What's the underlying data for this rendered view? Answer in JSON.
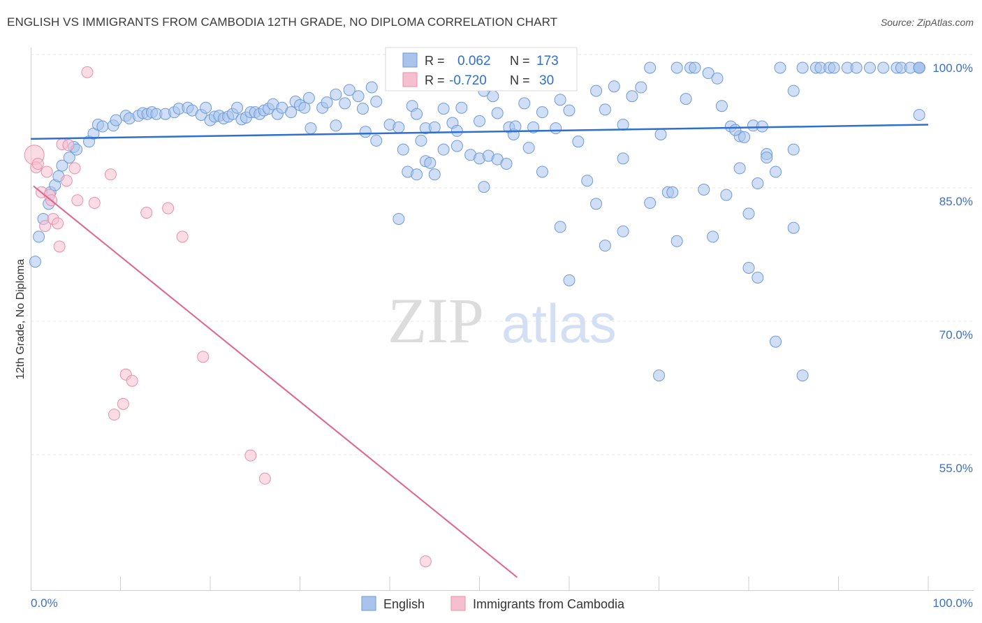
{
  "header": {
    "title": "ENGLISH VS IMMIGRANTS FROM CAMBODIA 12TH GRADE, NO DIPLOMA CORRELATION CHART",
    "source": "Source: ZipAtlas.com"
  },
  "watermark": {
    "zip": "ZIP",
    "atlas": "atlas"
  },
  "stats": [
    {
      "r_label": "R =",
      "r_value": "0.062",
      "n_label": "N =",
      "n_value": "173"
    },
    {
      "r_label": "R =",
      "r_value": "-0.720",
      "n_label": "N =",
      "n_value": "30"
    }
  ],
  "colors": {
    "english_fill": "#a9c4ec",
    "english_stroke": "#6f9ad8",
    "english_line": "#2f6fd1",
    "cambodia_fill": "#f6bfd0",
    "cambodia_stroke": "#ea8fac",
    "cambodia_line": "#e0628e",
    "axis_text": "#3c6fc9",
    "grid": "#e3e3e3"
  },
  "chart_data": {
    "type": "scatter",
    "title": "ENGLISH VS IMMIGRANTS FROM CAMBODIA 12TH GRADE, NO DIPLOMA CORRELATION CHART",
    "xlabel": "",
    "ylabel": "12th Grade, No Diploma",
    "xlim": [
      0,
      100
    ],
    "ylim": [
      43,
      101.5
    ],
    "x_tick_labels": [
      "0.0%",
      "100.0%"
    ],
    "y_ticks": [
      55,
      70,
      85,
      100
    ],
    "y_tick_labels": [
      "55.0%",
      "70.0%",
      "85.0%",
      "100.0%"
    ],
    "grid": true,
    "legend_position": "bottom-center",
    "series": [
      {
        "name": "English",
        "r": 0.062,
        "n": 173,
        "trend": [
          [
            0,
            92.0
          ],
          [
            100,
            93.6
          ]
        ],
        "points": [
          [
            0.5,
            78.2
          ],
          [
            0.9,
            81
          ],
          [
            1.4,
            83
          ],
          [
            2,
            84.7
          ],
          [
            2.2,
            86
          ],
          [
            2.7,
            86.8
          ],
          [
            3.1,
            87.8
          ],
          [
            3.5,
            89
          ],
          [
            4.3,
            89.9
          ],
          [
            4.8,
            91.1
          ],
          [
            5.1,
            90.8
          ],
          [
            6.5,
            91.7
          ],
          [
            7,
            92.6
          ],
          [
            7.5,
            93.6
          ],
          [
            8,
            93.4
          ],
          [
            9.2,
            93.5
          ],
          [
            9.5,
            94.1
          ],
          [
            10.6,
            94.6
          ],
          [
            11,
            94.3
          ],
          [
            12,
            94.6
          ],
          [
            12.5,
            94.9
          ],
          [
            13,
            94.8
          ],
          [
            13.5,
            95
          ],
          [
            14,
            94.8
          ],
          [
            15,
            94.8
          ],
          [
            16,
            95
          ],
          [
            16.5,
            95.4
          ],
          [
            17.5,
            95.5
          ],
          [
            18,
            95.2
          ],
          [
            19,
            94.7
          ],
          [
            19.5,
            95.5
          ],
          [
            20,
            94.1
          ],
          [
            20.5,
            94.5
          ],
          [
            21,
            94.6
          ],
          [
            21.5,
            94.3
          ],
          [
            22,
            94.5
          ],
          [
            22.5,
            94.8
          ],
          [
            23,
            95.5
          ],
          [
            23.5,
            94.2
          ],
          [
            24,
            94.4
          ],
          [
            24.5,
            95
          ],
          [
            25,
            95
          ],
          [
            25.5,
            94.8
          ],
          [
            26,
            95.2
          ],
          [
            26.5,
            95.4
          ],
          [
            27,
            95.9
          ],
          [
            27.5,
            94.8
          ],
          [
            28,
            95.5
          ],
          [
            29,
            95
          ],
          [
            29.5,
            96.2
          ],
          [
            30,
            95.8
          ],
          [
            30.5,
            95.5
          ],
          [
            31,
            96.6
          ],
          [
            32.5,
            95.5
          ],
          [
            33,
            96.1
          ],
          [
            34,
            97
          ],
          [
            35,
            96
          ],
          [
            35.5,
            97.5
          ],
          [
            36.5,
            96.8
          ],
          [
            37,
            95.4
          ],
          [
            38,
            97.8
          ],
          [
            38.5,
            96.2
          ],
          [
            31.2,
            93.2
          ],
          [
            34,
            93.5
          ],
          [
            37.3,
            92.8
          ],
          [
            38.5,
            91.8
          ],
          [
            40,
            93.6
          ],
          [
            41,
            93.3
          ],
          [
            42.5,
            95.7
          ],
          [
            43,
            94.8
          ],
          [
            43.5,
            91.8
          ],
          [
            44,
            93.2
          ],
          [
            45,
            93.3
          ],
          [
            46,
            95.4
          ],
          [
            47,
            93.8
          ],
          [
            47.5,
            92.9
          ],
          [
            48,
            95.5
          ],
          [
            50,
            94
          ],
          [
            50.5,
            97.4
          ],
          [
            51,
            98
          ],
          [
            51.5,
            96.8
          ],
          [
            52,
            94.9
          ],
          [
            53.3,
            93.3
          ],
          [
            53.8,
            92.5
          ],
          [
            55,
            96
          ],
          [
            56,
            93.3
          ],
          [
            57,
            95
          ],
          [
            58.5,
            93.2
          ],
          [
            59,
            96.4
          ],
          [
            60,
            95.2
          ],
          [
            61,
            91.7
          ],
          [
            63,
            97.4
          ],
          [
            64,
            95.3
          ],
          [
            65,
            97.9
          ],
          [
            66,
            93.6
          ],
          [
            67,
            96.8
          ],
          [
            68,
            97.8
          ],
          [
            69,
            100
          ],
          [
            70.2,
            92.5
          ],
          [
            72,
            100
          ],
          [
            73,
            96.5
          ],
          [
            73.5,
            100
          ],
          [
            74,
            100
          ],
          [
            75.5,
            99.4
          ],
          [
            76.5,
            98.8
          ],
          [
            77,
            95.7
          ],
          [
            78,
            93.4
          ],
          [
            79,
            92.3
          ],
          [
            78.5,
            93
          ],
          [
            79.5,
            92.2
          ],
          [
            80.5,
            93.5
          ],
          [
            81.5,
            93.4
          ],
          [
            82,
            90.3
          ],
          [
            83.5,
            100
          ],
          [
            85,
            97.4
          ],
          [
            86,
            100
          ],
          [
            87.5,
            100
          ],
          [
            88,
            100
          ],
          [
            89,
            100
          ],
          [
            89.5,
            100
          ],
          [
            91,
            100
          ],
          [
            92,
            100
          ],
          [
            93.5,
            100
          ],
          [
            95,
            100
          ],
          [
            96.5,
            100
          ],
          [
            97,
            100
          ],
          [
            98,
            100
          ],
          [
            99,
            100
          ],
          [
            99.5,
            100
          ],
          [
            101,
            100
          ],
          [
            102,
            100
          ],
          [
            103.5,
            100
          ],
          [
            104,
            100
          ],
          [
            105,
            100
          ],
          [
            100,
            94.7
          ],
          [
            41.5,
            90.8
          ],
          [
            42,
            88.3
          ],
          [
            43,
            88
          ],
          [
            44,
            89.5
          ],
          [
            44.5,
            89.3
          ],
          [
            45,
            88
          ],
          [
            46,
            90.8
          ],
          [
            47.5,
            91.2
          ],
          [
            49,
            90.2
          ],
          [
            50,
            89.8
          ],
          [
            51,
            90.1
          ],
          [
            52,
            89.7
          ],
          [
            53,
            89.2
          ],
          [
            54,
            93.4
          ],
          [
            55.5,
            91
          ],
          [
            57,
            88.3
          ],
          [
            62,
            87.3
          ],
          [
            66,
            89.8
          ],
          [
            71,
            86
          ],
          [
            71.5,
            86
          ],
          [
            75,
            86.3
          ],
          [
            79,
            88.7
          ],
          [
            81,
            87
          ],
          [
            82,
            89.9
          ],
          [
            83,
            88.3
          ],
          [
            85,
            90.8
          ],
          [
            59,
            82.1
          ],
          [
            60,
            76.1
          ],
          [
            63,
            84.7
          ],
          [
            64,
            80
          ],
          [
            66,
            81.6
          ],
          [
            69,
            84.8
          ],
          [
            72,
            80.5
          ],
          [
            76,
            81
          ],
          [
            77.5,
            85.7
          ],
          [
            80,
            83.6
          ],
          [
            81,
            76.4
          ],
          [
            83,
            69.2
          ],
          [
            85,
            82
          ],
          [
            86,
            65.4
          ],
          [
            70,
            65.4
          ],
          [
            80,
            77.5
          ],
          [
            50.5,
            86.6
          ],
          [
            41,
            83
          ]
        ]
      },
      {
        "name": "Immigrants from Cambodia",
        "r": -0.72,
        "n": 30,
        "trend": [
          [
            0.3,
            86.7
          ],
          [
            54.2,
            42.7
          ]
        ],
        "points": [
          [
            0.4,
            90.2
          ],
          [
            0.6,
            88.8
          ],
          [
            0.8,
            89.2
          ],
          [
            1.2,
            86
          ],
          [
            1.8,
            88.3
          ],
          [
            2.1,
            85.7
          ],
          [
            2.5,
            83
          ],
          [
            3,
            82.5
          ],
          [
            3.2,
            79.9
          ],
          [
            3.5,
            91.4
          ],
          [
            4,
            87.3
          ],
          [
            4.2,
            91.3
          ],
          [
            4.9,
            88.7
          ],
          [
            5.2,
            85.1
          ],
          [
            6.3,
            99.5
          ],
          [
            7.1,
            84.8
          ],
          [
            8.9,
            88
          ],
          [
            9.3,
            61
          ],
          [
            10.3,
            62.2
          ],
          [
            10.6,
            65.5
          ],
          [
            11.3,
            64.8
          ],
          [
            12.9,
            83.7
          ],
          [
            15.3,
            84.2
          ],
          [
            16.9,
            81
          ],
          [
            19.2,
            67.5
          ],
          [
            24.5,
            56.4
          ],
          [
            26.1,
            53.8
          ],
          [
            44,
            44.5
          ],
          [
            1.6,
            82.2
          ],
          [
            2.3,
            85.1
          ]
        ]
      }
    ]
  },
  "axes": {
    "ylabel": "12th Grade, No Diploma",
    "x_left": "0.0%",
    "x_right": "100.0%",
    "y_labels": [
      "100.0%",
      "85.0%",
      "70.0%",
      "55.0%"
    ]
  },
  "legend": {
    "items": [
      "English",
      "Immigrants from Cambodia"
    ]
  }
}
